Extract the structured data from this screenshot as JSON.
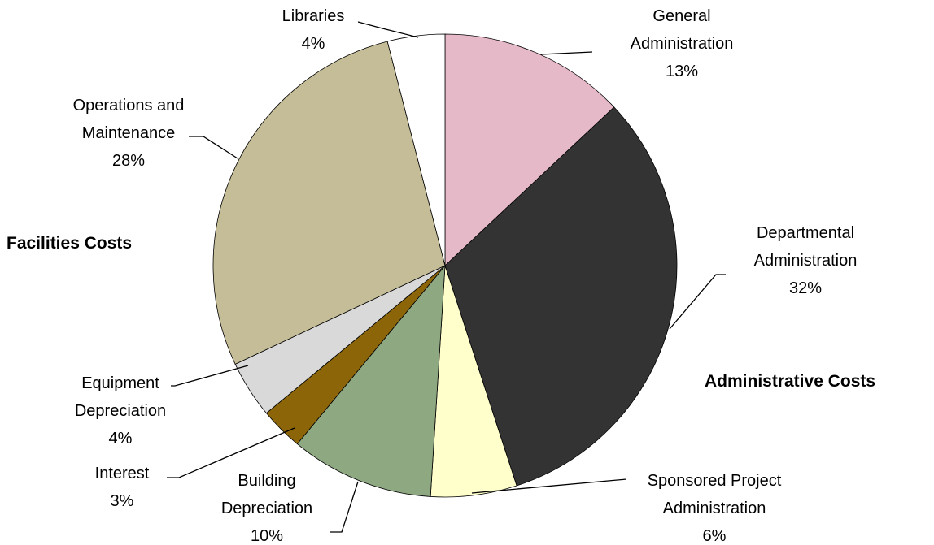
{
  "chart_data": {
    "type": "pie",
    "categories": [
      "General Administration",
      "Departmental Administration",
      "Sponsored Project Administration",
      "Building Depreciation",
      "Interest",
      "Equipment Depreciation",
      "Operations and Maintenance",
      "Libraries"
    ],
    "values": [
      13,
      32,
      6,
      10,
      3,
      4,
      28,
      4
    ],
    "value_labels": [
      "13%",
      "32%",
      "6%",
      "10%",
      "3%",
      "4%",
      "28%",
      "4%"
    ],
    "colors": [
      "#e6b9c8",
      "#333333",
      "#ffffcc",
      "#8ea882",
      "#8b6508",
      "#d9d9d9",
      "#c4bd97",
      "#ffffff"
    ],
    "annotations": [
      "Facilities Costs",
      "Administrative Costs"
    ]
  }
}
